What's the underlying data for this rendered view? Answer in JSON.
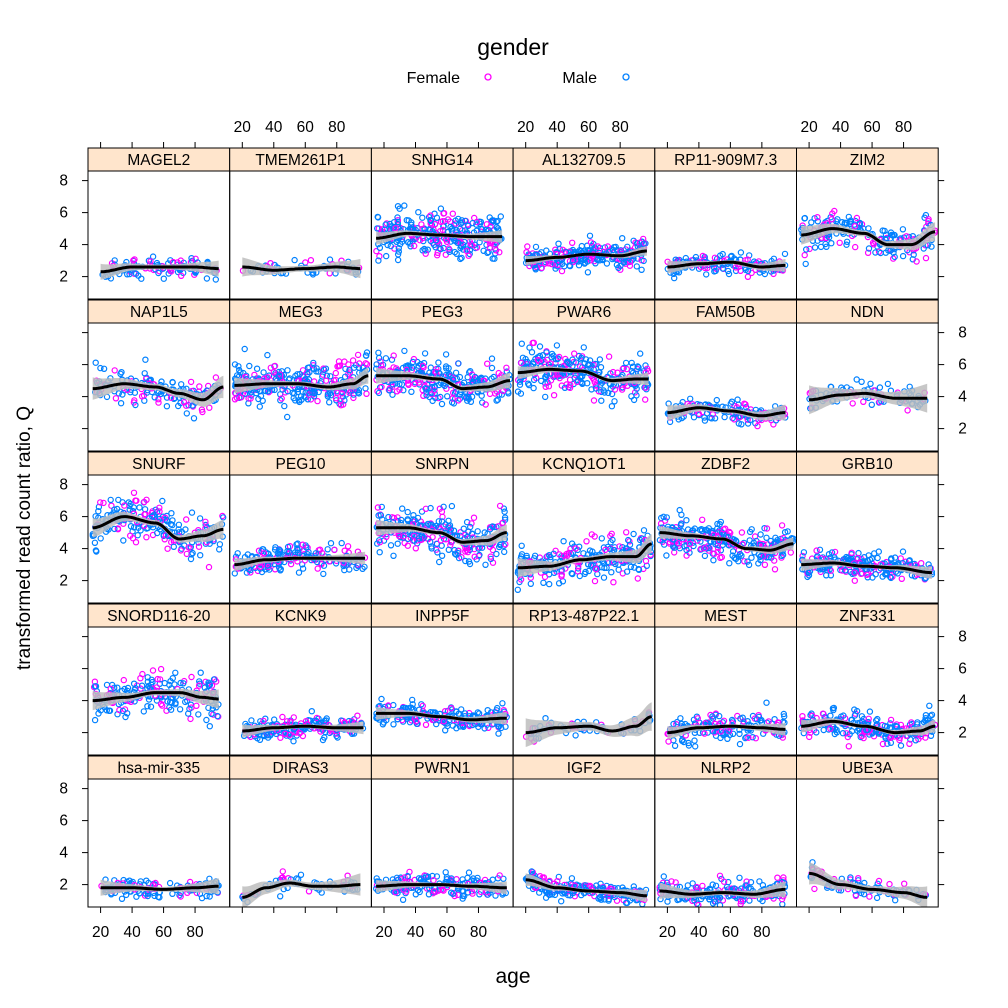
{
  "chart_data": {
    "type": "scatter",
    "legend": {
      "title": "gender",
      "placement": "top",
      "entries": [
        {
          "name": "Female",
          "color": "#ff00ff"
        },
        {
          "name": "Male",
          "color": "#0080ff"
        }
      ]
    },
    "xlabel": "age",
    "ylabel": "transformed read count ratio, Q",
    "xlim": [
      12,
      102
    ],
    "ylim": [
      0.6,
      8.6
    ],
    "x_ticks": [
      20,
      40,
      60,
      80
    ],
    "y_ticks": [
      2,
      4,
      6,
      8
    ],
    "strip_color": "#ffe5cc",
    "fit_color": "#000000",
    "band_color": "#bdbdbd",
    "panels": [
      {
        "name": "MAGEL2",
        "fit": [
          [
            20,
            2.3
          ],
          [
            40,
            2.6
          ],
          [
            60,
            2.6
          ],
          [
            80,
            2.6
          ],
          [
            95,
            2.5
          ]
        ],
        "bw": 0.25,
        "n": 110,
        "sd": 0.55,
        "xr": [
          20,
          95
        ]
      },
      {
        "name": "TMEM261P1",
        "fit": [
          [
            20,
            2.6
          ],
          [
            40,
            2.4
          ],
          [
            60,
            2.5
          ],
          [
            80,
            2.6
          ],
          [
            95,
            2.5
          ]
        ],
        "bw": 0.3,
        "n": 60,
        "sd": 0.4,
        "xr": [
          20,
          95
        ]
      },
      {
        "name": "SNHG14",
        "fit": [
          [
            15,
            4.4
          ],
          [
            35,
            4.7
          ],
          [
            55,
            4.6
          ],
          [
            75,
            4.5
          ],
          [
            95,
            4.5
          ]
        ],
        "bw": 0.2,
        "n": 320,
        "sd": 1.2,
        "xr": [
          15,
          95
        ]
      },
      {
        "name": "AL132709.5",
        "fit": [
          [
            20,
            3.0
          ],
          [
            40,
            3.2
          ],
          [
            60,
            3.4
          ],
          [
            80,
            3.3
          ],
          [
            97,
            3.6
          ]
        ],
        "bw": 0.15,
        "n": 260,
        "sd": 0.75,
        "xr": [
          20,
          97
        ]
      },
      {
        "name": "RP11-909M7.3",
        "fit": [
          [
            20,
            2.6
          ],
          [
            40,
            2.8
          ],
          [
            60,
            2.9
          ],
          [
            80,
            2.6
          ],
          [
            95,
            2.7
          ]
        ],
        "bw": 0.2,
        "n": 160,
        "sd": 0.55,
        "xr": [
          20,
          95
        ]
      },
      {
        "name": "ZIM2",
        "fit": [
          [
            15,
            4.6
          ],
          [
            35,
            5.0
          ],
          [
            55,
            4.7
          ],
          [
            70,
            4.0
          ],
          [
            85,
            4.0
          ],
          [
            100,
            4.8
          ]
        ],
        "bw": 0.3,
        "n": 200,
        "sd": 1.0,
        "xr": [
          15,
          100
        ]
      },
      {
        "name": "NAP1L5",
        "fit": [
          [
            15,
            4.5
          ],
          [
            35,
            4.8
          ],
          [
            55,
            4.6
          ],
          [
            70,
            4.2
          ],
          [
            85,
            3.8
          ],
          [
            98,
            4.6
          ]
        ],
        "bw": 0.35,
        "n": 150,
        "sd": 0.9,
        "xr": [
          15,
          98
        ]
      },
      {
        "name": "MEG3",
        "fit": [
          [
            15,
            4.7
          ],
          [
            35,
            4.8
          ],
          [
            55,
            4.8
          ],
          [
            75,
            4.6
          ],
          [
            90,
            4.8
          ],
          [
            100,
            5.3
          ]
        ],
        "bw": 0.25,
        "n": 340,
        "sd": 1.2,
        "xr": [
          15,
          100
        ]
      },
      {
        "name": "PEG3",
        "fit": [
          [
            15,
            5.3
          ],
          [
            35,
            5.3
          ],
          [
            55,
            5.1
          ],
          [
            70,
            4.5
          ],
          [
            85,
            4.6
          ],
          [
            100,
            5.0
          ]
        ],
        "bw": 0.25,
        "n": 300,
        "sd": 1.1,
        "xr": [
          15,
          100
        ]
      },
      {
        "name": "PWAR6",
        "fit": [
          [
            15,
            5.5
          ],
          [
            35,
            5.7
          ],
          [
            55,
            5.6
          ],
          [
            75,
            5.0
          ],
          [
            90,
            5.1
          ],
          [
            98,
            5.1
          ]
        ],
        "bw": 0.2,
        "n": 290,
        "sd": 1.1,
        "xr": [
          15,
          98
        ]
      },
      {
        "name": "FAM50B",
        "fit": [
          [
            20,
            3.0
          ],
          [
            40,
            3.3
          ],
          [
            60,
            3.1
          ],
          [
            80,
            2.8
          ],
          [
            95,
            3.0
          ]
        ],
        "bw": 0.25,
        "n": 150,
        "sd": 0.55,
        "xr": [
          20,
          95
        ]
      },
      {
        "name": "NDN",
        "fit": [
          [
            20,
            3.8
          ],
          [
            40,
            4.1
          ],
          [
            55,
            4.2
          ],
          [
            75,
            3.9
          ],
          [
            95,
            3.9
          ]
        ],
        "bw": 0.45,
        "n": 90,
        "sd": 0.7,
        "xr": [
          20,
          95
        ]
      },
      {
        "name": "SNURF",
        "fit": [
          [
            15,
            5.3
          ],
          [
            35,
            6.0
          ],
          [
            55,
            5.6
          ],
          [
            70,
            4.6
          ],
          [
            85,
            4.8
          ],
          [
            98,
            5.2
          ]
        ],
        "bw": 0.3,
        "n": 220,
        "sd": 1.2,
        "xr": [
          15,
          98
        ]
      },
      {
        "name": "PEG10",
        "fit": [
          [
            15,
            3.0
          ],
          [
            35,
            3.3
          ],
          [
            55,
            3.4
          ],
          [
            75,
            3.4
          ],
          [
            98,
            3.4
          ]
        ],
        "bw": 0.2,
        "n": 200,
        "sd": 0.75,
        "xr": [
          15,
          98
        ]
      },
      {
        "name": "SNRPN",
        "fit": [
          [
            15,
            5.3
          ],
          [
            35,
            5.3
          ],
          [
            55,
            5.0
          ],
          [
            70,
            4.4
          ],
          [
            85,
            4.5
          ],
          [
            98,
            5.0
          ]
        ],
        "bw": 0.25,
        "n": 280,
        "sd": 1.2,
        "xr": [
          15,
          98
        ]
      },
      {
        "name": "KCNQ1OT1",
        "fit": [
          [
            15,
            2.8
          ],
          [
            35,
            2.9
          ],
          [
            55,
            3.3
          ],
          [
            75,
            3.5
          ],
          [
            90,
            3.5
          ],
          [
            100,
            4.3
          ]
        ],
        "bw": 0.3,
        "n": 260,
        "sd": 1.0,
        "xr": [
          15,
          100
        ]
      },
      {
        "name": "ZDBF2",
        "fit": [
          [
            15,
            5.0
          ],
          [
            35,
            4.8
          ],
          [
            55,
            4.6
          ],
          [
            70,
            4.0
          ],
          [
            85,
            3.9
          ],
          [
            100,
            4.3
          ]
        ],
        "bw": 0.2,
        "n": 300,
        "sd": 1.0,
        "xr": [
          15,
          100
        ]
      },
      {
        "name": "GRB10",
        "fit": [
          [
            15,
            3.0
          ],
          [
            35,
            3.1
          ],
          [
            55,
            2.9
          ],
          [
            75,
            2.8
          ],
          [
            98,
            2.5
          ]
        ],
        "bw": 0.2,
        "n": 240,
        "sd": 0.65,
        "xr": [
          15,
          98
        ]
      },
      {
        "name": "SNORD116-20",
        "fit": [
          [
            15,
            4.0
          ],
          [
            35,
            4.2
          ],
          [
            55,
            4.5
          ],
          [
            70,
            4.5
          ],
          [
            85,
            4.2
          ],
          [
            95,
            4.1
          ]
        ],
        "bw": 0.3,
        "n": 200,
        "sd": 1.1,
        "xr": [
          15,
          95
        ]
      },
      {
        "name": "KCNK9",
        "fit": [
          [
            20,
            2.1
          ],
          [
            40,
            2.3
          ],
          [
            60,
            2.4
          ],
          [
            80,
            2.3
          ],
          [
            97,
            2.3
          ]
        ],
        "bw": 0.2,
        "n": 210,
        "sd": 0.55,
        "xr": [
          20,
          97
        ]
      },
      {
        "name": "INPP5F",
        "fit": [
          [
            15,
            3.2
          ],
          [
            35,
            3.2
          ],
          [
            55,
            3.0
          ],
          [
            75,
            2.8
          ],
          [
            98,
            2.9
          ]
        ],
        "bw": 0.2,
        "n": 220,
        "sd": 0.65,
        "xr": [
          15,
          98
        ]
      },
      {
        "name": "RP13-487P22.1",
        "fit": [
          [
            20,
            2.0
          ],
          [
            40,
            2.3
          ],
          [
            60,
            2.4
          ],
          [
            75,
            2.1
          ],
          [
            90,
            2.4
          ],
          [
            100,
            3.0
          ]
        ],
        "bw": 0.45,
        "n": 70,
        "sd": 0.55,
        "xr": [
          20,
          100
        ]
      },
      {
        "name": "MEST",
        "fit": [
          [
            20,
            2.0
          ],
          [
            40,
            2.3
          ],
          [
            60,
            2.4
          ],
          [
            80,
            2.3
          ],
          [
            95,
            2.2
          ]
        ],
        "bw": 0.2,
        "n": 160,
        "sd": 0.75,
        "xr": [
          20,
          95
        ]
      },
      {
        "name": "ZNF331",
        "fit": [
          [
            15,
            2.4
          ],
          [
            35,
            2.7
          ],
          [
            55,
            2.4
          ],
          [
            75,
            2.0
          ],
          [
            90,
            2.1
          ],
          [
            100,
            2.4
          ]
        ],
        "bw": 0.2,
        "n": 230,
        "sd": 0.75,
        "xr": [
          15,
          100
        ]
      },
      {
        "name": "hsa-mir-335",
        "fit": [
          [
            20,
            1.8
          ],
          [
            40,
            1.8
          ],
          [
            60,
            1.7
          ],
          [
            80,
            1.8
          ],
          [
            95,
            1.9
          ]
        ],
        "bw": 0.25,
        "n": 130,
        "sd": 0.5,
        "xr": [
          20,
          95
        ]
      },
      {
        "name": "DIRAS3",
        "fit": [
          [
            20,
            1.2
          ],
          [
            35,
            1.8
          ],
          [
            50,
            2.1
          ],
          [
            65,
            1.9
          ],
          [
            80,
            1.9
          ],
          [
            95,
            2.0
          ]
        ],
        "bw": 0.35,
        "n": 60,
        "sd": 0.45,
        "xr": [
          20,
          95
        ]
      },
      {
        "name": "PWRN1",
        "fit": [
          [
            15,
            1.9
          ],
          [
            35,
            2.0
          ],
          [
            55,
            2.0
          ],
          [
            75,
            1.9
          ],
          [
            98,
            1.8
          ]
        ],
        "bw": 0.2,
        "n": 200,
        "sd": 0.6,
        "xr": [
          15,
          98
        ]
      },
      {
        "name": "IGF2",
        "fit": [
          [
            20,
            2.3
          ],
          [
            40,
            1.8
          ],
          [
            60,
            1.6
          ],
          [
            80,
            1.5
          ],
          [
            97,
            1.3
          ]
        ],
        "bw": 0.2,
        "n": 220,
        "sd": 0.55,
        "xr": [
          20,
          97
        ]
      },
      {
        "name": "NLRP2",
        "fit": [
          [
            15,
            1.6
          ],
          [
            35,
            1.4
          ],
          [
            55,
            1.5
          ],
          [
            75,
            1.4
          ],
          [
            95,
            1.7
          ]
        ],
        "bw": 0.25,
        "n": 200,
        "sd": 0.6,
        "xr": [
          15,
          95
        ]
      },
      {
        "name": "UBE3A",
        "fit": [
          [
            20,
            2.7
          ],
          [
            40,
            2.0
          ],
          [
            60,
            1.7
          ],
          [
            80,
            1.5
          ],
          [
            95,
            1.2
          ]
        ],
        "bw": 0.35,
        "n": 90,
        "sd": 0.55,
        "xr": [
          20,
          95
        ]
      }
    ]
  }
}
